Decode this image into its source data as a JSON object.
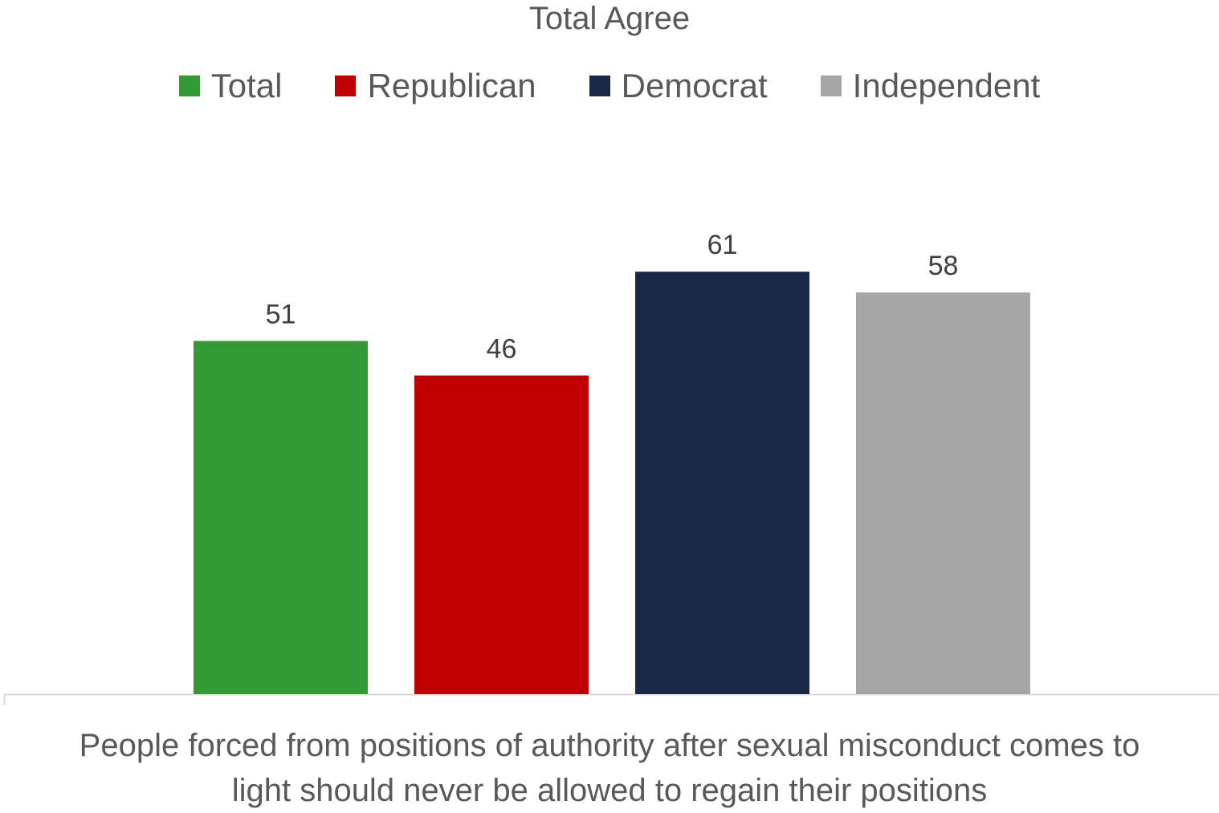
{
  "chart_data": {
    "type": "bar",
    "title": "Total Agree",
    "categories": [
      "People forced from positions of authority after sexual misconduct comes to light should never be allowed to regain their positions"
    ],
    "category_label_lines": [
      "People forced from positions of authority after sexual misconduct comes to",
      "light should never be allowed to regain their positions"
    ],
    "series": [
      {
        "name": "Total",
        "values": [
          51
        ],
        "color": "#339933"
      },
      {
        "name": "Republican",
        "values": [
          46
        ],
        "color": "#C00000"
      },
      {
        "name": "Democrat",
        "values": [
          61
        ],
        "color": "#172947"
      },
      {
        "name": "Independent",
        "values": [
          58
        ],
        "color": "#A6A6A6"
      }
    ],
    "ylim": [
      0,
      100
    ],
    "grid": false,
    "legend_position": "top",
    "data_labels": true
  }
}
